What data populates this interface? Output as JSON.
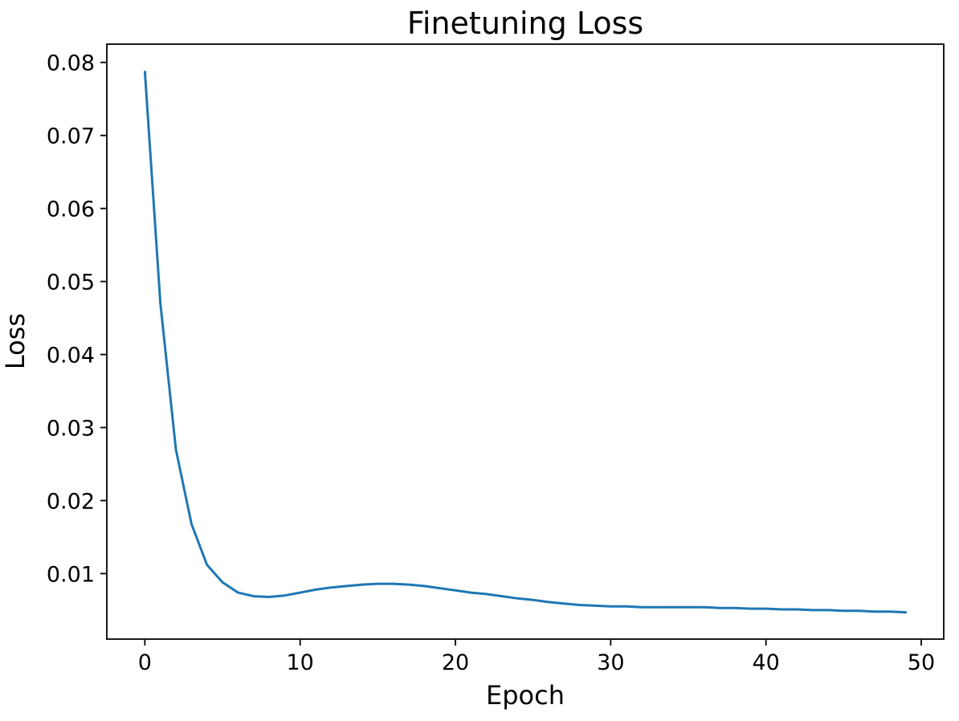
{
  "chart_data": {
    "type": "line",
    "title": "Finetuning Loss",
    "xlabel": "Epoch",
    "ylabel": "Loss",
    "grid": false,
    "legend_position": "none",
    "background_color": "#ffffff",
    "line_color": "#1f77b4",
    "xlim": [
      -2.45,
      51.45
    ],
    "ylim": [
      0.00103,
      0.0825
    ],
    "xticks": {
      "values": [
        0,
        10,
        20,
        30,
        40,
        50
      ],
      "labels": [
        "0",
        "10",
        "20",
        "30",
        "40",
        "50"
      ]
    },
    "yticks": {
      "values": [
        0.01,
        0.02,
        0.03,
        0.04,
        0.05,
        0.06,
        0.07,
        0.08
      ],
      "labels": [
        "0.01",
        "0.02",
        "0.03",
        "0.04",
        "0.05",
        "0.06",
        "0.07",
        "0.08"
      ]
    },
    "series": [
      {
        "name": "loss",
        "x": [
          0,
          1,
          2,
          3,
          4,
          5,
          6,
          7,
          8,
          9,
          10,
          11,
          12,
          13,
          14,
          15,
          16,
          17,
          18,
          19,
          20,
          21,
          22,
          23,
          24,
          25,
          26,
          27,
          28,
          29,
          30,
          31,
          32,
          33,
          34,
          35,
          36,
          37,
          38,
          39,
          40,
          41,
          42,
          43,
          44,
          45,
          46,
          47,
          48,
          49
        ],
        "values": [
          0.0787,
          0.047,
          0.027,
          0.0168,
          0.0112,
          0.0088,
          0.0074,
          0.0069,
          0.0068,
          0.007,
          0.0074,
          0.0078,
          0.0081,
          0.0083,
          0.0085,
          0.0086,
          0.0086,
          0.0085,
          0.0083,
          0.008,
          0.0077,
          0.0074,
          0.0072,
          0.0069,
          0.0066,
          0.0064,
          0.0061,
          0.0059,
          0.0057,
          0.0056,
          0.0055,
          0.0055,
          0.0054,
          0.0054,
          0.0054,
          0.0054,
          0.0054,
          0.0053,
          0.0053,
          0.0052,
          0.0052,
          0.0051,
          0.0051,
          0.005,
          0.005,
          0.0049,
          0.0049,
          0.0048,
          0.0048,
          0.0047
        ]
      }
    ]
  }
}
